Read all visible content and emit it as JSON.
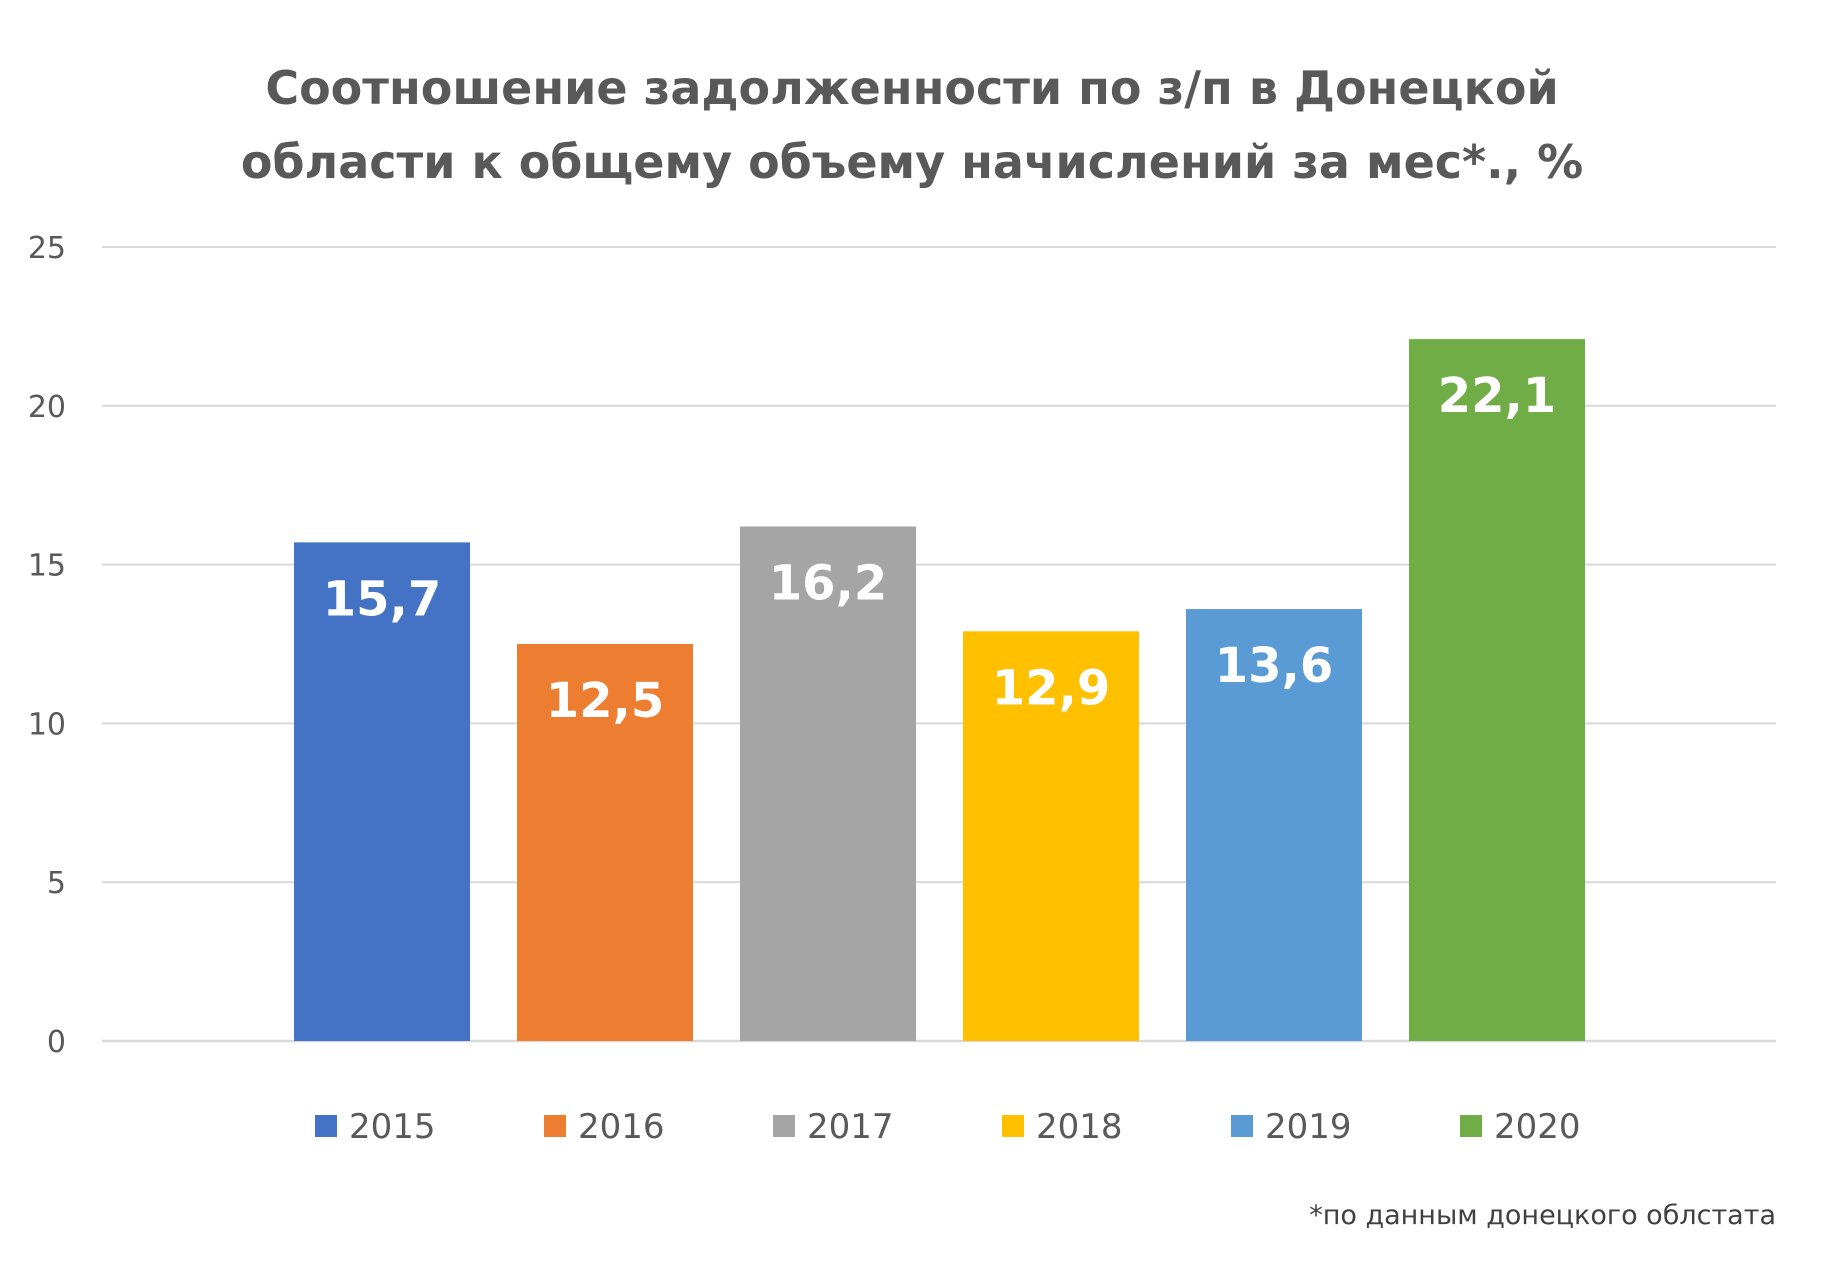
{
  "chart_data": {
    "type": "bar",
    "title_lines": [
      "Соотношение задолженности по з/п в Донецкой",
      "области к общему объему начислений за мес*., %"
    ],
    "xlabel": "",
    "ylabel": "",
    "ylim": [
      0,
      25
    ],
    "yticks": [
      0,
      5,
      10,
      15,
      20,
      25
    ],
    "grid": true,
    "legend_position": "bottom",
    "series": [
      {
        "name": "2015",
        "value": 15.7,
        "label": "15,7",
        "color": "#4472C4"
      },
      {
        "name": "2016",
        "value": 12.5,
        "label": "12,5",
        "color": "#ED7D31"
      },
      {
        "name": "2017",
        "value": 16.2,
        "label": "16,2",
        "color": "#A5A5A5"
      },
      {
        "name": "2018",
        "value": 12.9,
        "label": "12,9",
        "color": "#FFC000"
      },
      {
        "name": "2019",
        "value": 13.6,
        "label": "13,6",
        "color": "#5B9BD5"
      },
      {
        "name": "2020",
        "value": 22.1,
        "label": "22,1",
        "color": "#70AD47"
      }
    ],
    "footnote": "*по данным донецкого облстата"
  }
}
